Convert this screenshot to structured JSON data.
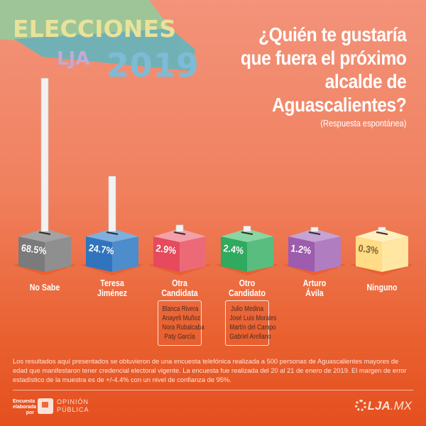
{
  "logo": {
    "line1": "ELECCIONES",
    "line2a": "LJA",
    "line2b": "2019"
  },
  "title_lines": [
    "¿Quién te gustaría",
    "que fuera el próximo",
    "alcalde de",
    "Aguascalientes?"
  ],
  "subtitle": "(Respuesta espontánea)",
  "chart_data": {
    "type": "bar",
    "title": "¿Quién te gustaría que fuera el próximo alcalde de Aguascalientes?",
    "subtitle": "(Respuesta espontánea)",
    "categories": [
      "No Sabe",
      "Teresa Jiménez",
      "Otra Candidata",
      "Otro Candidato",
      "Arturo Ávila",
      "Ninguno"
    ],
    "label_lines": [
      [
        "No Sabe"
      ],
      [
        "Teresa",
        "Jiménez"
      ],
      [
        "Otra",
        "Candidata"
      ],
      [
        "Otro",
        "Candidato"
      ],
      [
        "Arturo",
        "Ávila"
      ],
      [
        "Ninguno"
      ]
    ],
    "values": [
      68.5,
      24.7,
      2.9,
      2.4,
      1.2,
      0.3
    ],
    "value_labels": [
      "68.5%",
      "24.7%",
      "2.9%",
      "2.4%",
      "1.2%",
      "0.3%"
    ],
    "unit": "%",
    "colors": [
      {
        "top": "#a3a3a3",
        "left": "#7b7b7b",
        "right": "#8f8f8f",
        "text": "#ffffff"
      },
      {
        "top": "#7db0de",
        "left": "#2f74bd",
        "right": "#4d8dcb",
        "text": "#ffffff"
      },
      {
        "top": "#f3a0a8",
        "left": "#e64a5c",
        "right": "#ec6a78",
        "text": "#ffffff"
      },
      {
        "top": "#88d6a4",
        "left": "#2faa5e",
        "right": "#59bd80",
        "text": "#ffffff"
      },
      {
        "top": "#c5a3d4",
        "left": "#9e5cae",
        "right": "#b07dc0",
        "text": "#ffffff"
      },
      {
        "top": "#fff0bd",
        "left": "#ffdc85",
        "right": "#ffe6a3",
        "text": "#8a6e3a"
      }
    ]
  },
  "otra_candidata_names": [
    "Blanca Rivera",
    "Anayeli Muñoz",
    "Nora Rubalcaba",
    "Paty García"
  ],
  "otro_candidato_names": [
    "Julio Medina",
    "José Luis Morales",
    "Martín del Campo",
    "Gabriel Arellano"
  ],
  "footer": {
    "note": "Los resultados aquí presentados se obtuvieron de una encuesta telefónica realizada a 500 personas de Aguascalientes mayores de edad que manifestaron tener credencial electoral vigente. La encuesta fue realizada del 20 al 21 de enero de 2019. El margen de error estadístico de la muestra es de +/-4.4% con un nivel de confianza de 95%.",
    "by_lines": [
      "Encuesta",
      "elaborada",
      "por"
    ],
    "opinion": "OPINIÓN",
    "publica": "PÚBLICA",
    "lja": "LJA",
    "mx": ".MX"
  }
}
